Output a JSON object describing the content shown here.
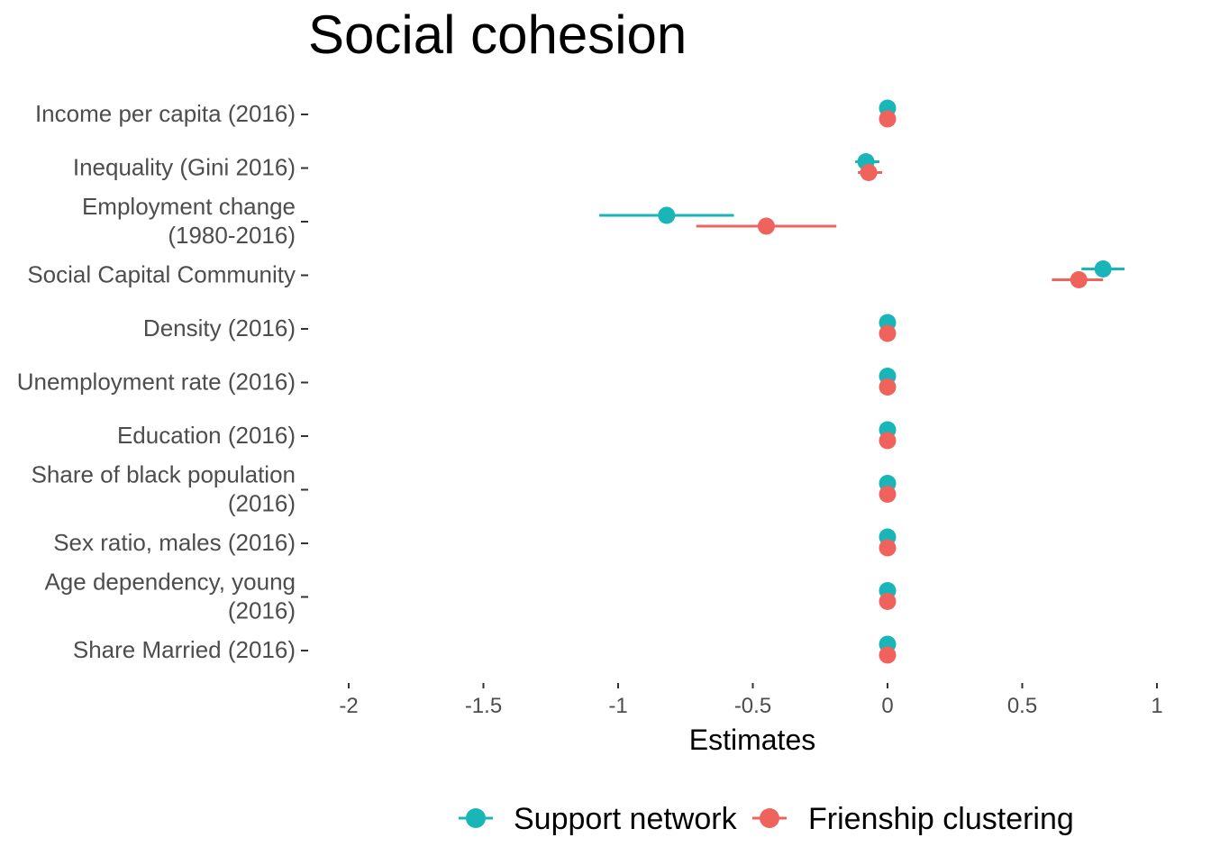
{
  "chart_data": {
    "type": "scatter",
    "title": "Social cohesion",
    "xlabel": "Estimates",
    "ylabel": "",
    "xlim": [
      -2,
      1
    ],
    "xticks": [
      "-2",
      "-1.5",
      "-1",
      "-0.5",
      "0",
      "0.5",
      "1"
    ],
    "xtick_values": [
      -2,
      -1.5,
      -1,
      -0.5,
      0,
      0.5,
      1
    ],
    "grid": false,
    "legend_position": "bottom",
    "categories": [
      [
        "Income per capita (2016)"
      ],
      [
        "Inequality (Gini 2016)"
      ],
      [
        "Employment change",
        "(1980-2016)"
      ],
      [
        "Social Capital Community"
      ],
      [
        "Density (2016)"
      ],
      [
        "Unemployment rate (2016)"
      ],
      [
        "Education (2016)"
      ],
      [
        "Share of black population",
        "(2016)"
      ],
      [
        "Sex ratio, males (2016)"
      ],
      [
        "Age dependency, young",
        "(2016)"
      ],
      [
        "Share Married (2016)"
      ]
    ],
    "series": [
      {
        "name": "Support network",
        "color": "#1ab5b8",
        "estimates": [
          0.0,
          -0.08,
          -0.82,
          0.8,
          0.0,
          0.0,
          0.0,
          0.0,
          0.0,
          0.0,
          0.0
        ],
        "ci_low": [
          0.0,
          -0.12,
          -1.07,
          0.72,
          0.0,
          0.0,
          0.0,
          0.0,
          0.0,
          0.0,
          0.0
        ],
        "ci_high": [
          0.0,
          -0.03,
          -0.57,
          0.88,
          0.0,
          0.0,
          0.0,
          0.0,
          0.0,
          0.0,
          0.0
        ]
      },
      {
        "name": "Frienship clustering",
        "color": "#f0625c",
        "estimates": [
          0.0,
          -0.07,
          -0.45,
          0.71,
          0.0,
          0.0,
          0.0,
          0.0,
          0.0,
          0.0,
          0.0
        ],
        "ci_low": [
          0.0,
          -0.11,
          -0.71,
          0.61,
          0.0,
          0.0,
          0.0,
          0.0,
          0.0,
          0.0,
          0.0
        ],
        "ci_high": [
          0.0,
          -0.02,
          -0.19,
          0.8,
          0.0,
          0.0,
          0.0,
          0.0,
          0.0,
          0.0,
          0.0
        ]
      }
    ]
  }
}
